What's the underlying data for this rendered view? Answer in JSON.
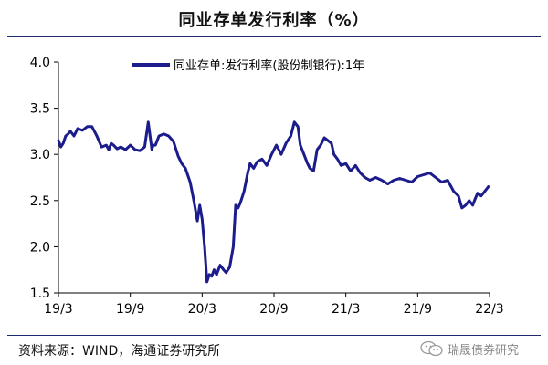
{
  "header": {
    "title": "同业存单发行利率（%）"
  },
  "footer": {
    "source": "资料来源：WIND，海通证券研究所",
    "watermark": "瑞晟债券研究"
  },
  "chart_data": {
    "type": "line",
    "title": "同业存单发行利率（%）",
    "xlabel": "",
    "ylabel": "",
    "ylim": [
      1.5,
      4.0
    ],
    "yticks": [
      1.5,
      2.0,
      2.5,
      3.0,
      3.5,
      4.0
    ],
    "ytick_labels": [
      "1.5",
      "2.0",
      "2.5",
      "3.0",
      "3.5",
      "4.0"
    ],
    "xticks": [
      0,
      6,
      12,
      18,
      24,
      30,
      36
    ],
    "xtick_labels": [
      "19/3",
      "19/9",
      "20/3",
      "20/9",
      "21/3",
      "21/9",
      "22/3"
    ],
    "xlim": [
      0,
      36
    ],
    "x_unit": "months since 2019/3",
    "grid": false,
    "legend_position": "top-left",
    "color": "#1c1c8c",
    "series": [
      {
        "name": "同业存单:发行利率(股份制银行):1年",
        "x": [
          0,
          0.2,
          0.4,
          0.6,
          0.8,
          1.0,
          1.3,
          1.6,
          2.0,
          2.4,
          2.8,
          3.2,
          3.6,
          4.0,
          4.2,
          4.4,
          4.6,
          4.9,
          5.2,
          5.6,
          6.0,
          6.4,
          6.8,
          7.2,
          7.5,
          7.8,
          7.9,
          8.1,
          8.4,
          8.8,
          9.2,
          9.6,
          10.0,
          10.3,
          10.6,
          11.0,
          11.3,
          11.6,
          11.8,
          12.0,
          12.2,
          12.4,
          12.6,
          12.8,
          13.0,
          13.2,
          13.5,
          13.8,
          14.0,
          14.3,
          14.6,
          14.8,
          15.0,
          15.2,
          15.5,
          15.8,
          16.0,
          16.3,
          16.6,
          17.0,
          17.4,
          17.8,
          18.2,
          18.6,
          19.0,
          19.4,
          19.7,
          20.0,
          20.2,
          20.5,
          20.8,
          21.0,
          21.3,
          21.6,
          21.9,
          22.2,
          22.5,
          22.8,
          23.0,
          23.3,
          23.6,
          24.0,
          24.4,
          24.8,
          25.2,
          25.6,
          26.0,
          26.5,
          27.0,
          27.5,
          28.0,
          28.5,
          29.0,
          29.5,
          30.0,
          30.5,
          31.0,
          31.5,
          32.0,
          32.5,
          33.0,
          33.4,
          33.7,
          34.0,
          34.3,
          34.6,
          34.8,
          35.0,
          35.3,
          35.6,
          35.9
        ],
        "values": [
          3.15,
          3.08,
          3.12,
          3.2,
          3.22,
          3.25,
          3.2,
          3.28,
          3.26,
          3.3,
          3.3,
          3.2,
          3.08,
          3.1,
          3.05,
          3.12,
          3.1,
          3.06,
          3.08,
          3.05,
          3.1,
          3.05,
          3.04,
          3.08,
          3.35,
          3.05,
          3.1,
          3.1,
          3.2,
          3.22,
          3.2,
          3.14,
          2.98,
          2.9,
          2.85,
          2.7,
          2.5,
          2.28,
          2.45,
          2.3,
          2.0,
          1.62,
          1.7,
          1.68,
          1.75,
          1.7,
          1.8,
          1.75,
          1.72,
          1.78,
          2.0,
          2.45,
          2.42,
          2.48,
          2.6,
          2.8,
          2.9,
          2.85,
          2.92,
          2.95,
          2.88,
          3.0,
          3.1,
          3.0,
          3.12,
          3.2,
          3.35,
          3.3,
          3.1,
          3.0,
          2.9,
          2.85,
          2.82,
          3.05,
          3.1,
          3.18,
          3.15,
          3.12,
          3.0,
          2.95,
          2.88,
          2.9,
          2.82,
          2.88,
          2.8,
          2.75,
          2.72,
          2.75,
          2.72,
          2.68,
          2.72,
          2.74,
          2.72,
          2.7,
          2.76,
          2.78,
          2.8,
          2.75,
          2.7,
          2.72,
          2.6,
          2.55,
          2.42,
          2.45,
          2.5,
          2.45,
          2.52,
          2.58,
          2.55,
          2.6,
          2.65
        ]
      }
    ]
  }
}
